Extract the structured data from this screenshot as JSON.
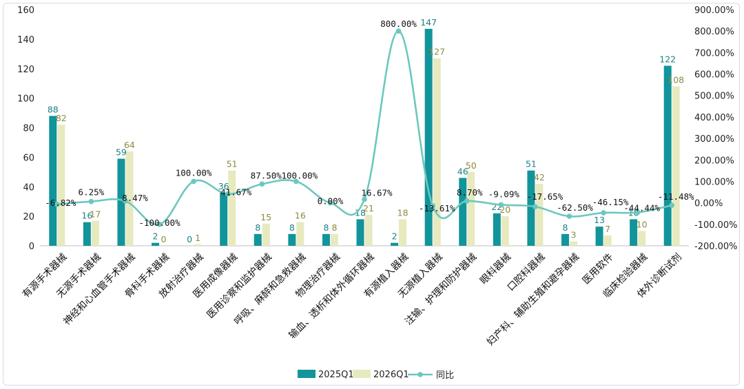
{
  "chart_data": {
    "type": "bar",
    "title": "",
    "categories": [
      "有源手术器械",
      "无源手术器械",
      "神经和心血管手术器械",
      "骨科手术器械",
      "放射治疗器械",
      "医用成像器械",
      "医用诊察和监护器械",
      "呼吸、麻醉和急救器械",
      "物理治疗器械",
      "输血、透析和体外循环器械",
      "有源植入器械",
      "无源植入器械",
      "注输、护理和防护器械",
      "眼科器械",
      "口腔科器械",
      "妇产科、辅助生殖和避孕器械",
      "医用软件",
      "临床检验器械",
      "体外诊断试剂"
    ],
    "series": [
      {
        "name": "2025Q1",
        "type": "bar",
        "color": "#12949b",
        "values": [
          88,
          16,
          59,
          2,
          0,
          36,
          8,
          8,
          8,
          18,
          2,
          147,
          46,
          22,
          51,
          8,
          13,
          18,
          122
        ],
        "labels": [
          "88",
          "16",
          "59",
          "2",
          "0",
          "36",
          "8",
          "8",
          "8",
          "18",
          "2",
          "147",
          "46",
          "22",
          "51",
          "8",
          "13",
          "18",
          "122"
        ]
      },
      {
        "name": "2026Q1",
        "type": "bar",
        "color": "#e7e9bf",
        "values": [
          82,
          17,
          64,
          0,
          1,
          51,
          15,
          16,
          8,
          21,
          18,
          127,
          50,
          20,
          42,
          3,
          7,
          10,
          108
        ],
        "labels": [
          "82",
          "17",
          "64",
          "0",
          "1",
          "51",
          "15",
          "16",
          "8",
          "21",
          "18",
          "127",
          "50",
          "20",
          "42",
          "3",
          "7",
          "10",
          "108"
        ]
      },
      {
        "name": "同比",
        "type": "line",
        "axis": "right",
        "color": "#6cc7bf",
        "values": [
          -6.82,
          6.25,
          8.47,
          -100.0,
          100.0,
          41.67,
          87.5,
          100.0,
          0.0,
          16.67,
          800.0,
          -13.61,
          8.7,
          -9.09,
          -17.65,
          -62.5,
          -46.15,
          -44.44,
          -11.48
        ],
        "labels": [
          "-6.82%",
          "6.25%",
          "8.47%",
          "-100.00%",
          "100.00%",
          "41.67%",
          "87.50%",
          "100.00%",
          "0.00%",
          "16.67%",
          "800.00%",
          "-13.61%",
          "8.70%",
          "-9.09%",
          "-17.65%",
          "-62.50%",
          "-46.15%",
          "-44.44%",
          "-11.48%"
        ]
      }
    ],
    "y_left": {
      "min": 0,
      "max": 160,
      "ticks": [
        0,
        20,
        40,
        60,
        80,
        100,
        120,
        140,
        160
      ],
      "tick_labels": [
        "0",
        "20",
        "40",
        "60",
        "80",
        "100",
        "120",
        "140",
        "160"
      ]
    },
    "y_right": {
      "min": -200,
      "max": 900,
      "ticks": [
        -200,
        -100,
        0,
        100,
        200,
        300,
        400,
        500,
        600,
        700,
        800,
        900
      ],
      "tick_labels": [
        "-200.00%",
        "-100.00%",
        "0.00%",
        "100.00%",
        "200.00%",
        "300.00%",
        "400.00%",
        "500.00%",
        "600.00%",
        "700.00%",
        "800.00%",
        "900.00%"
      ]
    },
    "grid": false,
    "legend": {
      "position": "bottom",
      "items": [
        "2025Q1",
        "2026Q1",
        "同比"
      ]
    }
  }
}
